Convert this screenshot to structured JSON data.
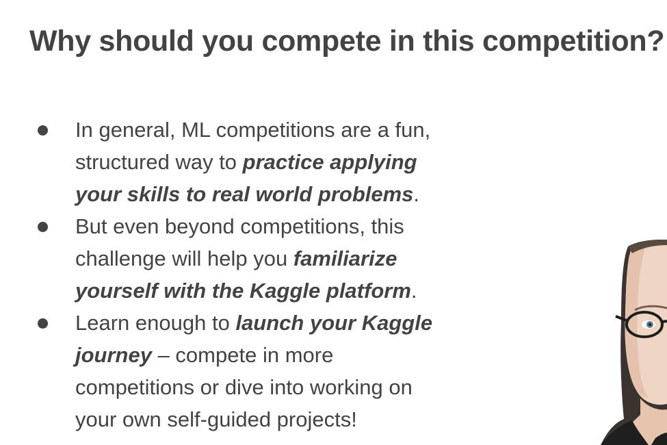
{
  "slide": {
    "title": "Why should you compete in this competition?",
    "bullets": [
      {
        "parts": [
          {
            "text": "In general, ML competitions are a fun, structured way to "
          },
          {
            "text": "practice applying your skills to real world problems",
            "emphasis": true
          },
          {
            "text": "."
          }
        ]
      },
      {
        "parts": [
          {
            "text": "But even beyond competitions, this challenge will help you "
          },
          {
            "text": "familiarize yourself with the Kaggle platform",
            "emphasis": true
          },
          {
            "text": "."
          }
        ]
      },
      {
        "parts": [
          {
            "text": "Learn enough to "
          },
          {
            "text": "launch your Kaggle journey",
            "emphasis": true
          },
          {
            "text": " – compete in more competitions or dive into working on your own self-guided projects!"
          }
        ]
      }
    ]
  },
  "presenter": {
    "icon": "presenter-webcam-image"
  },
  "colors": {
    "text": "#434343",
    "background": "#ffffff"
  }
}
